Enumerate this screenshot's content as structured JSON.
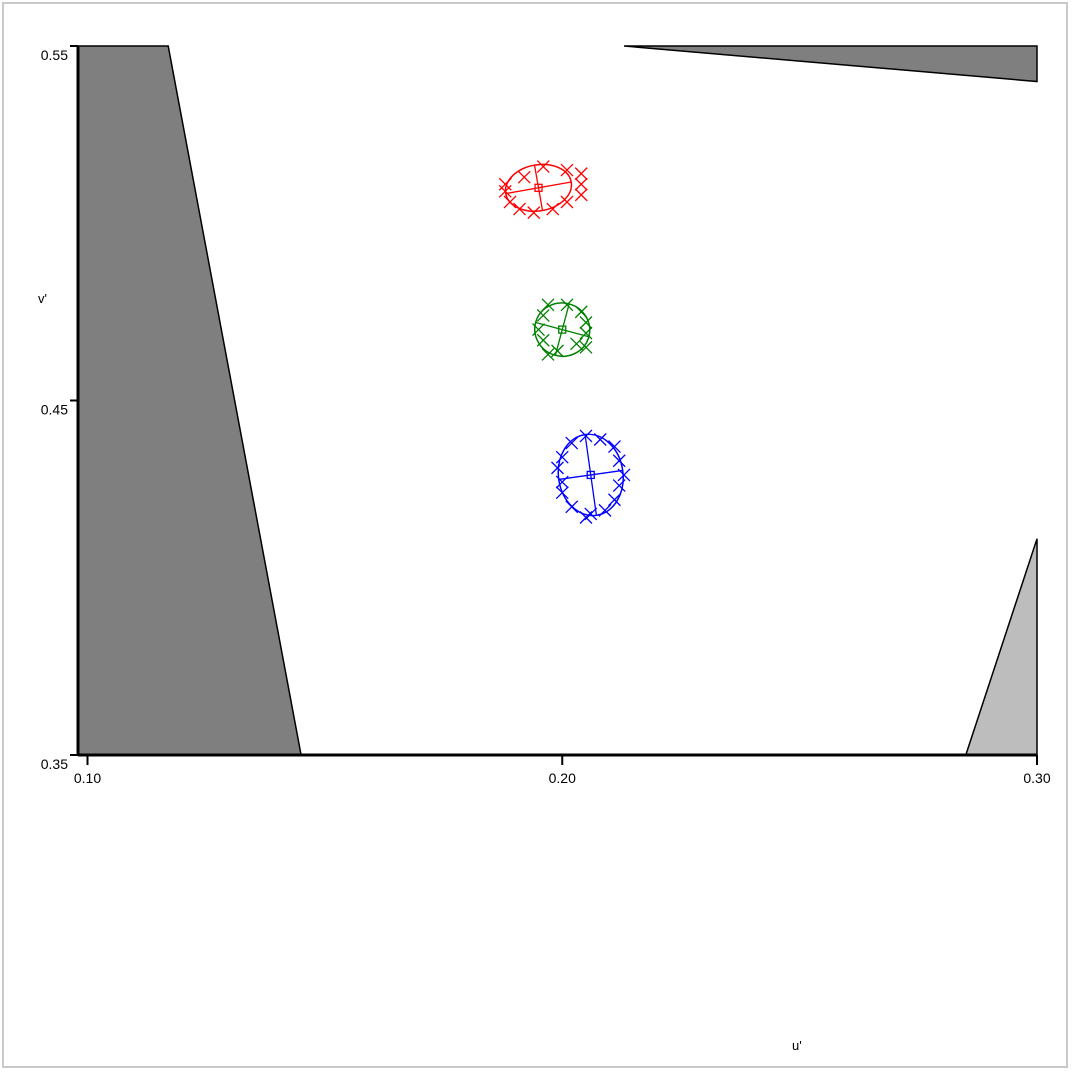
{
  "chart_data": {
    "type": "scatter",
    "xlabel": "u'",
    "ylabel": "v'",
    "xlim": [
      0.098,
      0.3
    ],
    "ylim": [
      0.35,
      0.55
    ],
    "x_ticks": [
      {
        "value": 0.1,
        "label": "0.10"
      },
      {
        "value": 0.2,
        "label": "0.20"
      },
      {
        "value": 0.3,
        "label": "0.30"
      }
    ],
    "y_ticks": [
      {
        "value": 0.55,
        "label": "0.55"
      },
      {
        "value": 0.45,
        "label": "0.45"
      },
      {
        "value": 0.35,
        "label": "0.35"
      }
    ],
    "regions": [
      {
        "id": "left-gamut-region",
        "color": "#7f7f7f",
        "points": [
          [
            0.098,
            0.55
          ],
          [
            0.117,
            0.55
          ],
          [
            0.145,
            0.35
          ],
          [
            0.098,
            0.35
          ]
        ]
      },
      {
        "id": "top-right-gamut-region",
        "color": "#7f7f7f",
        "points": [
          [
            0.213,
            0.55
          ],
          [
            0.3,
            0.55
          ],
          [
            0.3,
            0.54
          ]
        ]
      },
      {
        "id": "bottom-right-gamut-region",
        "color": "#bdbdbd",
        "points": [
          [
            0.3,
            0.411
          ],
          [
            0.3,
            0.35
          ],
          [
            0.285,
            0.35
          ]
        ]
      }
    ],
    "series": [
      {
        "color": "#ff0000",
        "center": [
          0.195,
          0.51
        ],
        "radii": [
          0.007,
          0.0065
        ],
        "rotation_deg": -10,
        "points": [
          [
            0.196,
            0.516
          ],
          [
            0.201,
            0.515
          ],
          [
            0.204,
            0.514
          ],
          [
            0.192,
            0.513
          ],
          [
            0.188,
            0.511
          ],
          [
            0.204,
            0.511
          ],
          [
            0.188,
            0.509
          ],
          [
            0.204,
            0.508
          ],
          [
            0.189,
            0.506
          ],
          [
            0.201,
            0.506
          ],
          [
            0.198,
            0.504
          ],
          [
            0.191,
            0.504
          ],
          [
            0.194,
            0.503
          ]
        ]
      },
      {
        "color": "#008000",
        "center": [
          0.2,
          0.47
        ],
        "radii": [
          0.0058,
          0.0075
        ],
        "rotation_deg": 15,
        "points": [
          [
            0.197,
            0.477
          ],
          [
            0.201,
            0.477
          ],
          [
            0.204,
            0.475
          ],
          [
            0.196,
            0.474
          ],
          [
            0.205,
            0.472
          ],
          [
            0.195,
            0.47
          ],
          [
            0.205,
            0.469
          ],
          [
            0.196,
            0.467
          ],
          [
            0.203,
            0.466
          ],
          [
            0.205,
            0.465
          ],
          [
            0.199,
            0.464
          ],
          [
            0.197,
            0.463
          ]
        ]
      },
      {
        "color": "#0000ff",
        "center": [
          0.206,
          0.429
        ],
        "radii": [
          0.0068,
          0.0115
        ],
        "rotation_deg": -8,
        "points": [
          [
            0.205,
            0.44
          ],
          [
            0.208,
            0.439
          ],
          [
            0.202,
            0.438
          ],
          [
            0.211,
            0.437
          ],
          [
            0.2,
            0.434
          ],
          [
            0.212,
            0.433
          ],
          [
            0.199,
            0.431
          ],
          [
            0.213,
            0.429
          ],
          [
            0.2,
            0.427
          ],
          [
            0.212,
            0.426
          ],
          [
            0.2,
            0.424
          ],
          [
            0.211,
            0.422
          ],
          [
            0.202,
            0.42
          ],
          [
            0.209,
            0.419
          ],
          [
            0.206,
            0.418
          ],
          [
            0.205,
            0.417
          ]
        ]
      }
    ]
  }
}
